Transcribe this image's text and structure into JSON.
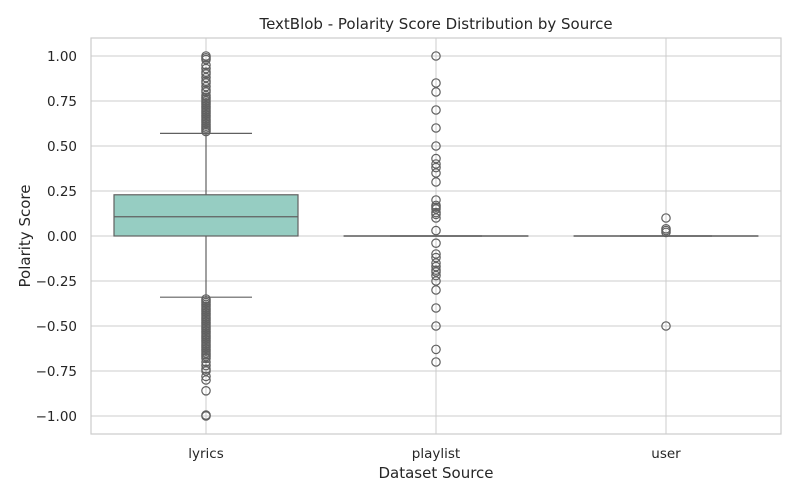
{
  "chart_data": {
    "type": "box",
    "title": "TextBlob - Polarity Score Distribution by Source",
    "xlabel": "Dataset Source",
    "ylabel": "Polarity Score",
    "ylim": [
      -1.1,
      1.1
    ],
    "yticks": [
      -1.0,
      -0.75,
      -0.5,
      -0.25,
      0.0,
      0.25,
      0.5,
      0.75,
      1.0
    ],
    "ytick_labels": [
      "−1.00",
      "−0.75",
      "−0.50",
      "−0.25",
      "0.00",
      "0.25",
      "0.50",
      "0.75",
      "1.00"
    ],
    "grid": true,
    "box_color": "#96cdc2",
    "line_color": "#606060",
    "categories": [
      "lyrics",
      "playlist",
      "user"
    ],
    "boxes": [
      {
        "category": "lyrics",
        "whisker_low": -0.34,
        "q1": 0.0,
        "median": 0.107,
        "q3": 0.229,
        "whisker_high": 0.57,
        "outliers": [
          1.0,
          0.99,
          0.98,
          0.95,
          0.93,
          0.91,
          0.9,
          0.88,
          0.86,
          0.85,
          0.83,
          0.81,
          0.8,
          0.78,
          0.77,
          0.76,
          0.75,
          0.74,
          0.73,
          0.72,
          0.71,
          0.7,
          0.69,
          0.68,
          0.67,
          0.66,
          0.65,
          0.64,
          0.63,
          0.62,
          0.61,
          0.6,
          0.59,
          0.58,
          -0.35,
          -0.36,
          -0.37,
          -0.38,
          -0.39,
          -0.4,
          -0.41,
          -0.42,
          -0.43,
          -0.44,
          -0.45,
          -0.46,
          -0.47,
          -0.48,
          -0.49,
          -0.5,
          -0.51,
          -0.52,
          -0.53,
          -0.54,
          -0.55,
          -0.56,
          -0.57,
          -0.58,
          -0.59,
          -0.6,
          -0.61,
          -0.62,
          -0.63,
          -0.64,
          -0.65,
          -0.66,
          -0.67,
          -0.68,
          -0.7,
          -0.72,
          -0.74,
          -0.75,
          -0.78,
          -0.8,
          -0.86,
          -1.0,
          -0.995
        ]
      },
      {
        "category": "playlist",
        "whisker_low": 0.0,
        "q1": 0.0,
        "median": 0.0,
        "q3": 0.0,
        "whisker_high": 0.0,
        "outliers": [
          1.0,
          0.85,
          0.8,
          0.7,
          0.6,
          0.5,
          0.43,
          0.4,
          0.38,
          0.35,
          0.3,
          0.2,
          0.17,
          0.16,
          0.15,
          0.13,
          0.12,
          0.1,
          0.03,
          -0.04,
          -0.1,
          -0.12,
          -0.15,
          -0.17,
          -0.19,
          -0.2,
          -0.22,
          -0.25,
          -0.3,
          -0.4,
          -0.5,
          -0.63,
          -0.7
        ]
      },
      {
        "category": "user",
        "whisker_low": 0.0,
        "q1": 0.0,
        "median": 0.0,
        "q3": 0.0,
        "whisker_high": 0.0,
        "outliers": [
          0.1,
          0.04,
          0.03,
          0.02,
          -0.5
        ]
      }
    ]
  }
}
